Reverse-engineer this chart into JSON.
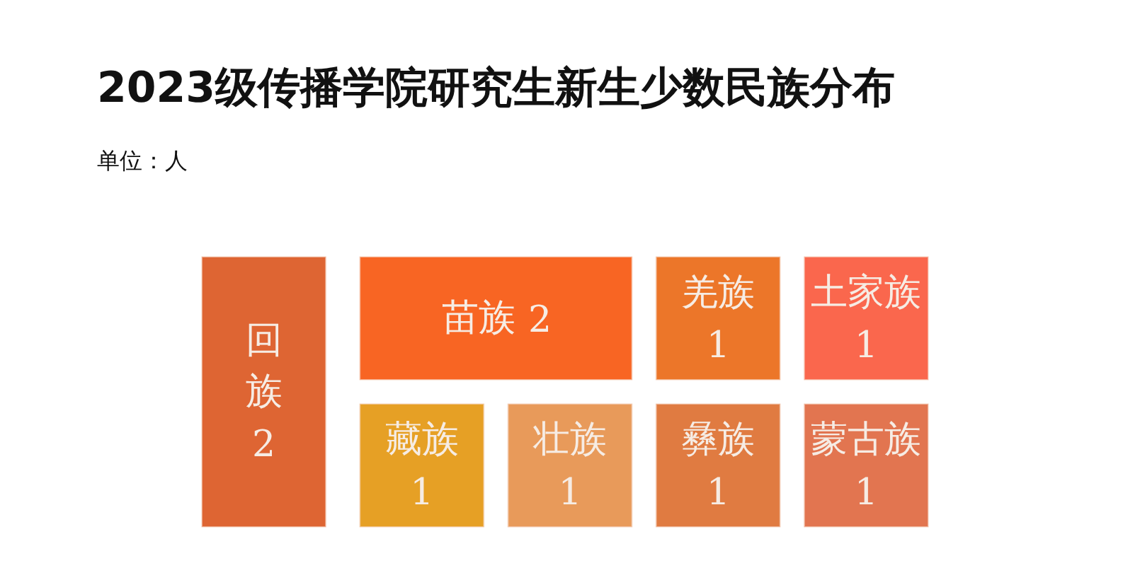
{
  "chart_data": {
    "type": "other",
    "title": "2023级传播学院研究生新生少数民族分布",
    "subtitle": "单位：人",
    "categories": [
      "回族",
      "苗族",
      "羌族",
      "土家族",
      "藏族",
      "壮族",
      "彝族",
      "蒙古族"
    ],
    "values": [
      2,
      2,
      1,
      1,
      1,
      1,
      1,
      1
    ],
    "colors": [
      "#de6533",
      "#f86523",
      "#ec7629",
      "#fa674d",
      "#e6a025",
      "#e89a5a",
      "#e07b41",
      "#e27550"
    ],
    "data_labels": true
  }
}
